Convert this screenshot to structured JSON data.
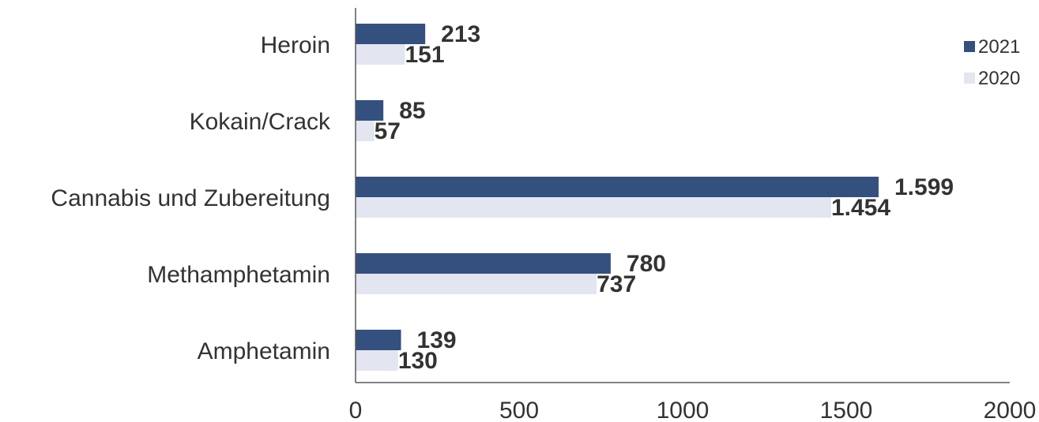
{
  "chart_data": {
    "type": "bar",
    "orientation": "horizontal",
    "categories": [
      "Heroin",
      "Kokain/Crack",
      "Cannabis und Zubereitung",
      "Methamphetamin",
      "Amphetamin"
    ],
    "series": [
      {
        "name": "2021",
        "values": [
          213,
          85,
          1599,
          780,
          139
        ],
        "labels": [
          "213",
          "85",
          "1.599",
          "780",
          "139"
        ],
        "color": "#34507f"
      },
      {
        "name": "2020",
        "values": [
          151,
          57,
          1454,
          737,
          130
        ],
        "labels": [
          "151",
          "57",
          "1.454",
          "737",
          "130"
        ],
        "color": "#e3e6f0"
      }
    ],
    "xlim": [
      0,
      2000
    ],
    "xticks": [
      0,
      500,
      1000,
      1500,
      2000
    ],
    "xtick_labels": [
      "0",
      "500",
      "1000",
      "1500",
      "2000"
    ],
    "title": "",
    "xlabel": "",
    "ylabel": "",
    "grid": false,
    "legend_position": "top-right"
  }
}
